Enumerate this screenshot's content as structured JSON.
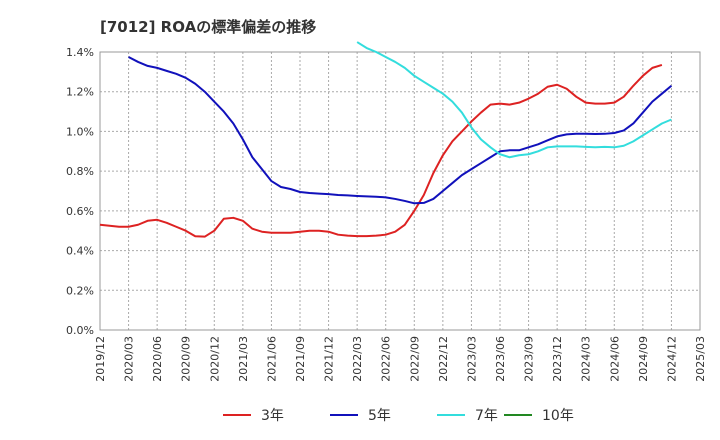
{
  "chart_data": {
    "type": "line",
    "title": "[7012]  ROAの標準偏差の推移",
    "xlabel": "",
    "ylabel": "",
    "x_ticks": [
      "2019/12",
      "2020/03",
      "2020/06",
      "2020/09",
      "2020/12",
      "2021/03",
      "2021/06",
      "2021/09",
      "2021/12",
      "2022/03",
      "2022/06",
      "2022/09",
      "2022/12",
      "2023/03",
      "2023/06",
      "2023/09",
      "2023/12",
      "2024/03",
      "2024/06",
      "2024/09",
      "2024/12",
      "2025/03"
    ],
    "y_ticks": [
      "0.0%",
      "0.2%",
      "0.4%",
      "0.6%",
      "0.8%",
      "1.0%",
      "1.2%",
      "1.4%"
    ],
    "ylim": [
      0,
      0.0014
    ],
    "grid": true,
    "legend_position": "bottom",
    "x_unit": "month",
    "series": [
      {
        "name": "3年",
        "color": "#dd2222",
        "start": "2019/12",
        "values": [
          0.00053,
          0.000525,
          0.00052,
          0.00052,
          0.00053,
          0.00055,
          0.000555,
          0.00054,
          0.00052,
          0.0005,
          0.000472,
          0.00047,
          0.0005,
          0.00056,
          0.000565,
          0.00055,
          0.00051,
          0.000495,
          0.00049,
          0.00049,
          0.00049,
          0.000495,
          0.0005,
          0.0005,
          0.000495,
          0.00048,
          0.000475,
          0.000473,
          0.000473,
          0.000475,
          0.00048,
          0.000495,
          0.00053,
          0.0006,
          0.00068,
          0.00079,
          0.00088,
          0.00095,
          0.001,
          0.00105,
          0.001095,
          0.001135,
          0.00114,
          0.001135,
          0.001145,
          0.001165,
          0.00119,
          0.001225,
          0.001235,
          0.001215,
          0.001175,
          0.001145,
          0.00114,
          0.00114,
          0.001145,
          0.001175,
          0.00123,
          0.00128,
          0.00132,
          0.001335
        ]
      },
      {
        "name": "5年",
        "color": "#1111bb",
        "start": "2020/03",
        "values": [
          0.001375,
          0.00135,
          0.00133,
          0.00132,
          0.001305,
          0.00129,
          0.00127,
          0.00124,
          0.0012,
          0.00115,
          0.0011,
          0.00104,
          0.00096,
          0.00087,
          0.00081,
          0.00075,
          0.00072,
          0.00071,
          0.000695,
          0.00069,
          0.000687,
          0.000684,
          0.00068,
          0.000678,
          0.000675,
          0.000673,
          0.000671,
          0.000668,
          0.00066,
          0.00065,
          0.000638,
          0.00064,
          0.00066,
          0.0007,
          0.00074,
          0.00078,
          0.00081,
          0.00084,
          0.00087,
          0.0009,
          0.000905,
          0.000905,
          0.00092,
          0.000935,
          0.000955,
          0.000975,
          0.000985,
          0.000988,
          0.000988,
          0.000987,
          0.000988,
          0.000992,
          0.001005,
          0.00104,
          0.001095,
          0.00115,
          0.00119,
          0.00123
        ]
      },
      {
        "name": "7年",
        "color": "#33dddd",
        "start": "2022/03",
        "values": [
          0.00145,
          0.00142,
          0.0014,
          0.001375,
          0.00135,
          0.00132,
          0.00128,
          0.00125,
          0.00122,
          0.00119,
          0.00115,
          0.001095,
          0.00102,
          0.00096,
          0.00092,
          0.000885,
          0.00087,
          0.00088,
          0.000885,
          0.0009,
          0.00092,
          0.000925,
          0.000925,
          0.000925,
          0.000922,
          0.00092,
          0.000922,
          0.00092,
          0.000928,
          0.00095,
          0.00098,
          0.00101,
          0.00104,
          0.00106
        ]
      },
      {
        "name": "10年",
        "color": "#228822",
        "start": "2024/12",
        "values": []
      }
    ]
  }
}
